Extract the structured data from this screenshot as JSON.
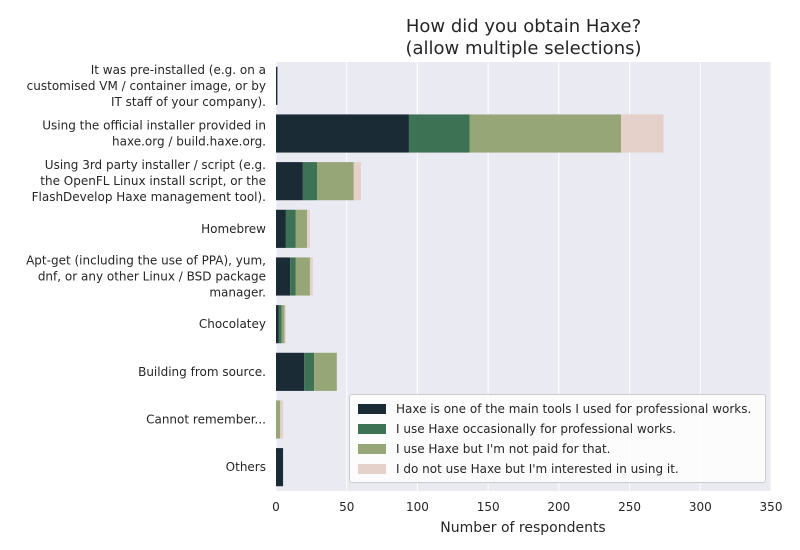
{
  "chart_data": {
    "type": "bar",
    "orientation": "horizontal",
    "stacked": true,
    "title": "How did you obtain Haxe?\n(allow multiple selections)",
    "title_lines": [
      "How did you obtain Haxe?",
      "(allow multiple selections)"
    ],
    "xlabel": "Number of respondents",
    "ylabel": "",
    "xlim": [
      0,
      350
    ],
    "x_ticks": [
      0,
      50,
      100,
      150,
      200,
      250,
      300,
      350
    ],
    "grid": true,
    "legend_position": "bottom-right",
    "categories": [
      "It was pre-installed (e.g. on a customised VM / container image, or by IT staff of your company).",
      "Using the official installer provided in haxe.org / build.haxe.org.",
      "Using 3rd party installer / script (e.g. the OpenFL Linux install script, or the FlashDevelop Haxe management tool).",
      "Homebrew",
      "Apt-get (including the use of PPA), yum, dnf, or any other Linux / BSD package manager.",
      "Chocolatey",
      "Building from source.",
      "Cannot remember...",
      "Others"
    ],
    "category_lines": [
      [
        "It was pre-installed (e.g. on a",
        "customised VM / container image, or by",
        "IT staff of your company)."
      ],
      [
        "Using the official installer provided in",
        "haxe.org / build.haxe.org."
      ],
      [
        "Using 3rd party installer / script (e.g.",
        "the OpenFL Linux install script, or the",
        "FlashDevelop Haxe management tool)."
      ],
      [
        "Homebrew"
      ],
      [
        "Apt-get (including the use of PPA), yum,",
        "dnf, or any other Linux / BSD package",
        "manager."
      ],
      [
        "Chocolatey"
      ],
      [
        "Building from source."
      ],
      [
        "Cannot remember..."
      ],
      [
        "Others"
      ]
    ],
    "series": [
      {
        "name": "Haxe is one of the main tools I used for professional works.",
        "color": "#1b2b35",
        "values": [
          1,
          94,
          19,
          7,
          10,
          2,
          20,
          0,
          5
        ]
      },
      {
        "name": "I use Haxe occasionally for professional works.",
        "color": "#3e7255",
        "values": [
          0,
          43,
          10,
          7,
          4,
          2,
          7,
          0,
          0
        ]
      },
      {
        "name": "I use Haxe but I'm not paid for that.",
        "color": "#97a677",
        "values": [
          0,
          107,
          26,
          8,
          10,
          2,
          16,
          3,
          0
        ]
      },
      {
        "name": "I do not use Haxe but I'm interested in using it.",
        "color": "#e6d1ca",
        "values": [
          0,
          30,
          5,
          2,
          2,
          1,
          0,
          2,
          0
        ]
      }
    ]
  }
}
